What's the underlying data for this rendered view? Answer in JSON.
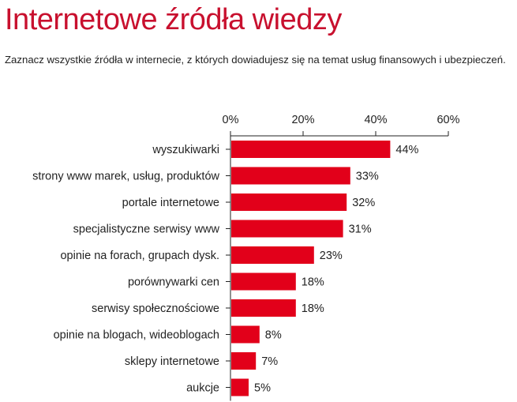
{
  "header": {
    "title": "Internetowe źródła wiedzy",
    "subtitle": "Zaznacz wszystkie źródła w internecie, z których dowiadujesz się na temat usług finansowych i ubezpieczeń."
  },
  "colors": {
    "title": "#c8102e",
    "bar": "#e2001a",
    "axis": "#222222"
  },
  "chart_data": {
    "type": "bar",
    "orientation": "horizontal",
    "title": "Internetowe źródła wiedzy",
    "subtitle": "Zaznacz wszystkie źródła w internecie, z których dowiadujesz się na temat usług finansowych i ubezpieczeń.",
    "categories": [
      "wyszukiwarki",
      "strony www marek, usług, produktów",
      "portale internetowe",
      "specjalistyczne serwisy www",
      "opinie na forach, grupach dysk.",
      "porównywarki cen",
      "serwisy społecznościowe",
      "opinie na blogach, wideoblogach",
      "sklepy internetowe",
      "aukcje"
    ],
    "values": [
      44,
      33,
      32,
      31,
      23,
      18,
      18,
      8,
      7,
      5
    ],
    "value_labels": [
      "44%",
      "33%",
      "32%",
      "31%",
      "23%",
      "18%",
      "18%",
      "8%",
      "7%",
      "5%"
    ],
    "xlim": [
      0,
      60
    ],
    "x_ticks": [
      0,
      20,
      40,
      60
    ],
    "x_tick_labels": [
      "0%",
      "20%",
      "40%",
      "60%"
    ],
    "x_axis_position": "top",
    "grid": false,
    "legend": "none"
  }
}
